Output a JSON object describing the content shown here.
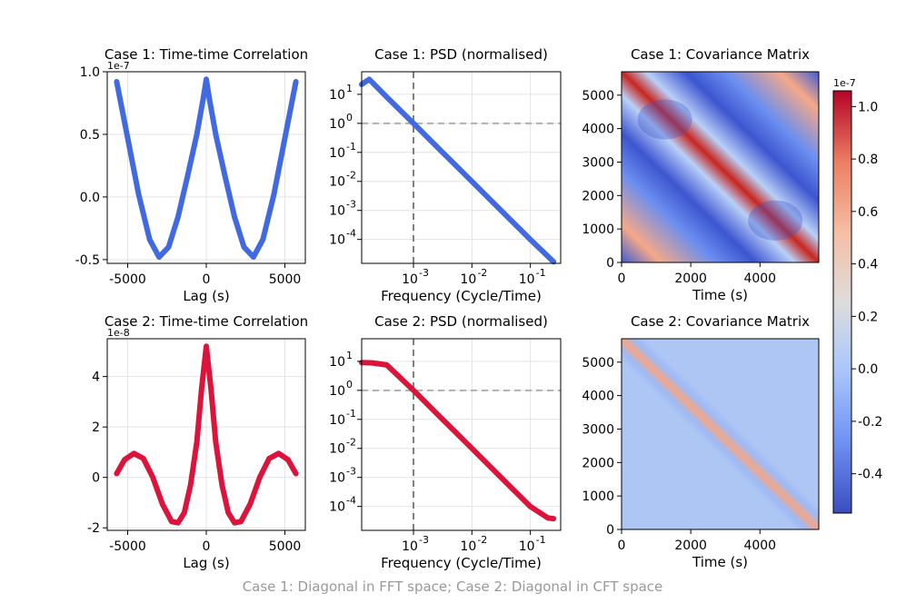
{
  "chart_data": [
    {
      "type": "line",
      "id": "acf1",
      "title": "Case 1: Time-time Correlation",
      "xlabel": "Lag (s)",
      "ylabel": "",
      "offset_text": "1e-7",
      "color": "#4169E1",
      "xlim": [
        -6300,
        6300
      ],
      "ylim": [
        -0.53,
        1.0
      ],
      "xticks": [
        -5000,
        0,
        5000
      ],
      "xtick_labels": [
        "-5000",
        "0",
        "5000"
      ],
      "yticks": [
        -0.5,
        0.0,
        0.5,
        1.0
      ],
      "ytick_labels": [
        "-0.5",
        "0.0",
        "0.5",
        "1.0"
      ],
      "x": [
        -5700,
        -5000,
        -4300,
        -3600,
        -3000,
        -2400,
        -1800,
        -1200,
        -600,
        -200,
        0,
        200,
        600,
        1200,
        1800,
        2400,
        3000,
        3600,
        4300,
        5000,
        5700
      ],
      "y": [
        0.92,
        0.47,
        0.02,
        -0.34,
        -0.48,
        -0.4,
        -0.16,
        0.16,
        0.5,
        0.78,
        0.94,
        0.78,
        0.5,
        0.16,
        -0.16,
        -0.4,
        -0.48,
        -0.34,
        0.02,
        0.47,
        0.92
      ]
    },
    {
      "type": "line",
      "id": "psd1",
      "title": "Case 1: PSD (normalised)",
      "xlabel": "Frequency (Cycle/Time)",
      "ylabel": "",
      "color": "#4169E1",
      "xscale": "log",
      "yscale": "log",
      "xlim": [
        0.00013,
        0.33
      ],
      "ylim": [
        1.5e-05,
        60
      ],
      "xticks": [
        0.001,
        0.01,
        0.1
      ],
      "xtick_labels": [
        "10",
        "10",
        "10"
      ],
      "xtick_exponents": [
        "-3",
        "-2",
        "-1"
      ],
      "yticks": [
        10,
        1,
        0.1,
        0.01,
        0.001,
        0.0001
      ],
      "ytick_labels": [
        "10",
        "10",
        "10",
        "10",
        "10",
        "10"
      ],
      "ytick_exponents": [
        "1",
        "0",
        "-1",
        "-2",
        "-3",
        "-4"
      ],
      "vline": 0.001,
      "hline": 1,
      "x": [
        0.00013,
        0.000175,
        0.00035,
        0.001,
        0.003,
        0.01,
        0.03,
        0.1,
        0.25
      ],
      "y": [
        22,
        33,
        8,
        1,
        0.11,
        0.01,
        0.0011,
        0.0001,
        1.7e-05
      ]
    },
    {
      "type": "heatmap",
      "id": "cov1",
      "title": "Case 1: Covariance Matrix",
      "xlabel": "Time (s)",
      "ylabel": "",
      "xlim": [
        0,
        5700
      ],
      "ylim": [
        0,
        5700
      ],
      "xticks": [
        0,
        2000,
        4000
      ],
      "xtick_labels": [
        "0",
        "2000",
        "4000"
      ],
      "yticks": [
        0,
        1000,
        2000,
        3000,
        4000,
        5000
      ],
      "ytick_labels": [
        "0",
        "1000",
        "2000",
        "3000",
        "4000",
        "5000"
      ]
    },
    {
      "type": "line",
      "id": "acf2",
      "title": "Case 2: Time-time Correlation",
      "xlabel": "Lag (s)",
      "ylabel": "",
      "offset_text": "1e-8",
      "color": "#DC143C",
      "xlim": [
        -6300,
        6300
      ],
      "ylim": [
        -2.1,
        5.5
      ],
      "xticks": [
        -5000,
        0,
        5000
      ],
      "xtick_labels": [
        "-5000",
        "0",
        "5000"
      ],
      "yticks": [
        -2,
        0,
        2,
        4
      ],
      "ytick_labels": [
        "-2",
        "0",
        "2",
        "4"
      ],
      "x": [
        -5700,
        -5200,
        -4600,
        -4000,
        -3400,
        -2800,
        -2200,
        -1800,
        -1400,
        -1000,
        -600,
        -300,
        0,
        300,
        600,
        1000,
        1400,
        1800,
        2200,
        2800,
        3400,
        4000,
        4600,
        5200,
        5700
      ],
      "y": [
        0.15,
        0.7,
        0.95,
        0.75,
        0.0,
        -1.05,
        -1.75,
        -1.8,
        -1.4,
        -0.3,
        1.4,
        3.5,
        5.2,
        3.5,
        1.4,
        -0.3,
        -1.4,
        -1.8,
        -1.75,
        -1.05,
        0.0,
        0.75,
        0.95,
        0.7,
        0.15
      ]
    },
    {
      "type": "line",
      "id": "psd2",
      "title": "Case 2: PSD (normalised)",
      "xlabel": "Frequency (Cycle/Time)",
      "ylabel": "",
      "color": "#DC143C",
      "xscale": "log",
      "yscale": "log",
      "xlim": [
        0.00013,
        0.33
      ],
      "ylim": [
        1.5e-05,
        60
      ],
      "xticks": [
        0.001,
        0.01,
        0.1
      ],
      "xtick_labels": [
        "10",
        "10",
        "10"
      ],
      "xtick_exponents": [
        "-3",
        "-2",
        "-1"
      ],
      "yticks": [
        10,
        1,
        0.1,
        0.01,
        0.001,
        0.0001
      ],
      "ytick_labels": [
        "10",
        "10",
        "10",
        "10",
        "10",
        "10"
      ],
      "ytick_exponents": [
        "1",
        "0",
        "-1",
        "-2",
        "-3",
        "-4"
      ],
      "vline": 0.001,
      "hline": 1,
      "x": [
        0.00013,
        0.0002,
        0.00035,
        0.001,
        0.003,
        0.01,
        0.03,
        0.1,
        0.2,
        0.25
      ],
      "y": [
        9,
        8.8,
        7.5,
        1,
        0.11,
        0.01,
        0.0011,
        0.0001,
        4e-05,
        3.8e-05
      ]
    },
    {
      "type": "heatmap",
      "id": "cov2",
      "title": "Case 2: Covariance Matrix",
      "xlabel": "Time (s)",
      "ylabel": "",
      "xlim": [
        0,
        5700
      ],
      "ylim": [
        0,
        5700
      ],
      "xticks": [
        0,
        2000,
        4000
      ],
      "xtick_labels": [
        "0",
        "2000",
        "4000"
      ],
      "yticks": [
        0,
        1000,
        2000,
        3000,
        4000,
        5000
      ],
      "ytick_labels": [
        "0",
        "1000",
        "2000",
        "3000",
        "4000",
        "5000"
      ]
    }
  ],
  "colorbar": {
    "offset_text": "1e-7",
    "range": [
      -0.55,
      1.06
    ],
    "ticks": [
      1.0,
      0.8,
      0.6,
      0.4,
      0.2,
      0.0,
      -0.2,
      -0.4
    ],
    "tick_labels": [
      "1.0",
      "0.8",
      "0.6",
      "0.4",
      "0.2",
      "0.0",
      "-0.2",
      "-0.4"
    ],
    "colormap": "coolwarm",
    "colors": [
      "#3b4cc0",
      "#7396f5",
      "#b0cbfc",
      "#dddcdc",
      "#f6bfa6",
      "#ec7f63",
      "#b40426"
    ]
  },
  "caption": "Case 1: Diagonal in FFT space; Case 2: Diagonal in CFT space",
  "colors": {
    "grid": "#e4e4e4",
    "refline": "#808080",
    "hline": "#b0b0b0"
  }
}
